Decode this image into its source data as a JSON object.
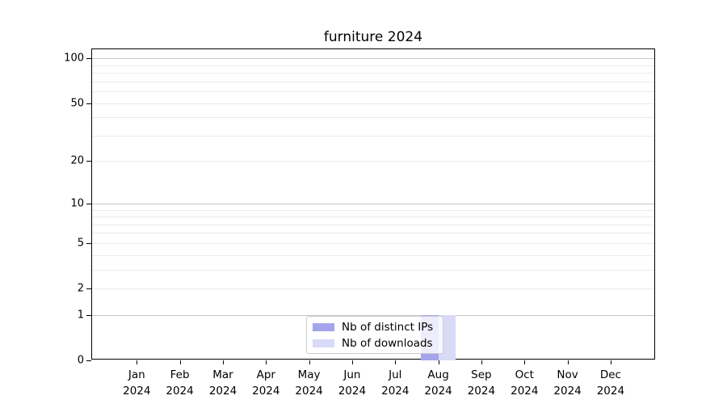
{
  "chart_data": {
    "type": "bar",
    "title": "furniture 2024",
    "categories": [
      {
        "month": "Jan",
        "year": "2024"
      },
      {
        "month": "Feb",
        "year": "2024"
      },
      {
        "month": "Mar",
        "year": "2024"
      },
      {
        "month": "Apr",
        "year": "2024"
      },
      {
        "month": "May",
        "year": "2024"
      },
      {
        "month": "Jun",
        "year": "2024"
      },
      {
        "month": "Jul",
        "year": "2024"
      },
      {
        "month": "Aug",
        "year": "2024"
      },
      {
        "month": "Sep",
        "year": "2024"
      },
      {
        "month": "Oct",
        "year": "2024"
      },
      {
        "month": "Nov",
        "year": "2024"
      },
      {
        "month": "Dec",
        "year": "2024"
      }
    ],
    "series": [
      {
        "name": "Nb of distinct IPs",
        "color": "#a4a4ec",
        "values": [
          0,
          0,
          0,
          0,
          0,
          0,
          0,
          1,
          0,
          0,
          0,
          0
        ]
      },
      {
        "name": "Nb of downloads",
        "color": "#d9d9f8",
        "values": [
          0,
          0,
          0,
          0,
          0,
          0,
          0,
          1,
          0,
          0,
          0,
          0
        ]
      }
    ],
    "y_axis": {
      "scale": "log1p",
      "ylim": [
        0,
        115
      ],
      "tick_values": [
        0,
        1,
        2,
        5,
        10,
        20,
        50,
        100
      ],
      "major_gridlines": [
        1,
        10,
        100
      ],
      "minor_gridlines": [
        2,
        3,
        4,
        5,
        6,
        7,
        8,
        9,
        20,
        30,
        40,
        50,
        60,
        70,
        80,
        90
      ],
      "major_grid_color": "#c8c8c8",
      "minor_grid_color": "#ebebeb"
    },
    "xlabel": "",
    "ylabel": "",
    "legend": {
      "position": "lower center"
    },
    "grid": true,
    "background_color": "#ffffff",
    "axis_color": "#000000"
  }
}
